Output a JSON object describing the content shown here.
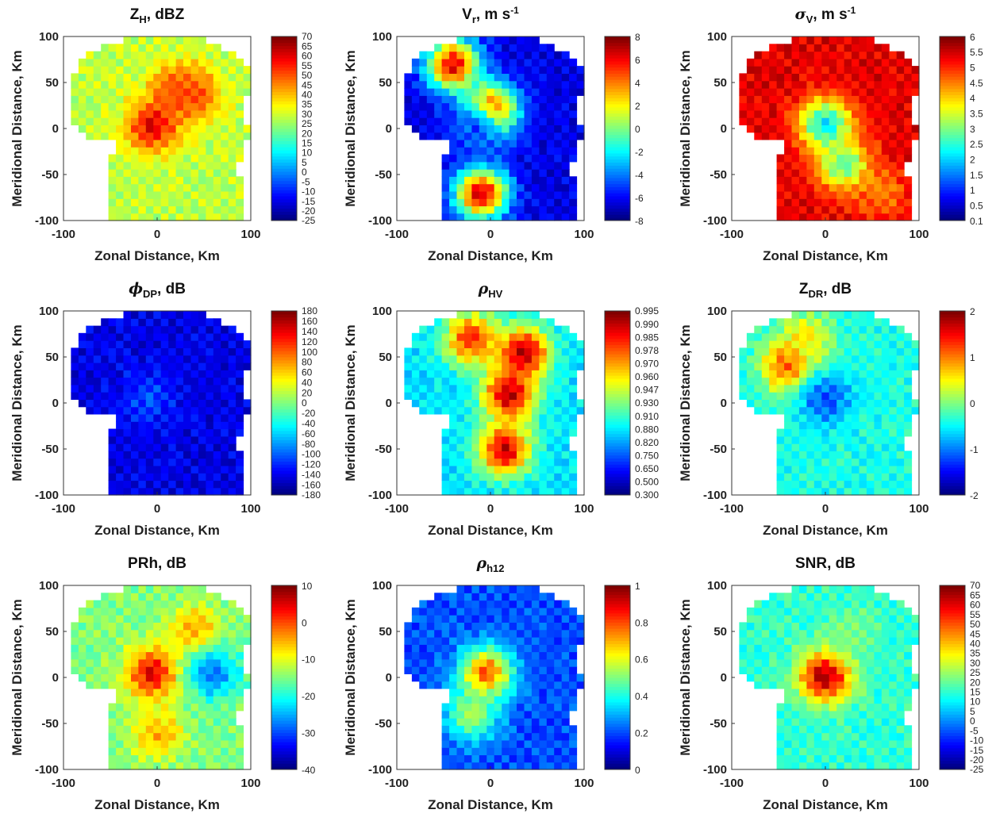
{
  "figure": {
    "xlabel": "Zonal Distance, Km",
    "ylabel": "Meridional Distance, Km",
    "xticks": [
      "-100",
      "0",
      "100"
    ],
    "yticks": [
      "100",
      "50",
      "0",
      "-50",
      "-100"
    ]
  },
  "chart_data": [
    {
      "type": "heatmap",
      "id": "zh",
      "title": {
        "main": "Z",
        "sub": "H",
        "suffix": ", dBZ",
        "italic": false
      },
      "xlim": [
        -100,
        100
      ],
      "ylim": [
        -100,
        100
      ],
      "colorbar": {
        "ticks": [
          "70",
          "65",
          "60",
          "55",
          "50",
          "45",
          "40",
          "35",
          "30",
          "25",
          "20",
          "15",
          "10",
          "5",
          "0",
          "-5",
          "-10",
          "-15",
          "-20",
          "-25"
        ],
        "min": -25,
        "max": 70
      },
      "field": {
        "base": 0.5,
        "echo_color": 0.56,
        "hotspots": [
          {
            "x": 20,
            "y": 45,
            "v": 0.78
          },
          {
            "x": 40,
            "y": 35,
            "v": 0.8
          },
          {
            "x": -5,
            "y": 3,
            "v": 0.9
          }
        ]
      }
    },
    {
      "type": "heatmap",
      "id": "vr",
      "title": {
        "main": "V",
        "sub": "r",
        "suffix": ", m s",
        "sup": "-1",
        "italic": false
      },
      "xlim": [
        -100,
        100
      ],
      "ylim": [
        -100,
        100
      ],
      "colorbar": {
        "ticks": [
          "8",
          "6",
          "4",
          "2",
          "0",
          "-2",
          "-4",
          "-6",
          "-8"
        ],
        "min": -8,
        "max": 8
      },
      "field": {
        "base": 0.08,
        "echo_color": 0.1,
        "hotspots": [
          {
            "x": -40,
            "y": 70,
            "v": 0.9
          },
          {
            "x": 0,
            "y": 20,
            "v": 0.95
          },
          {
            "x": -10,
            "y": -70,
            "v": 0.92
          },
          {
            "x": -15,
            "y": 0,
            "v": 0.2
          }
        ]
      }
    },
    {
      "type": "heatmap",
      "id": "sigv",
      "title": {
        "main": "σ",
        "sub": "V",
        "suffix": ", m s",
        "sup": "-1",
        "italic": true
      },
      "xlim": [
        -100,
        100
      ],
      "ylim": [
        -100,
        100
      ],
      "colorbar": {
        "ticks": [
          "6",
          "5.5",
          "5",
          "4.5",
          "4",
          "3.5",
          "3",
          "2.5",
          "2",
          "1.5",
          "1",
          "0.5",
          "0.1"
        ],
        "min": 0.1,
        "max": 6
      },
      "field": {
        "base": 0.95,
        "echo_color": 0.9,
        "hotspots": [
          {
            "x": 0,
            "y": 5,
            "v": 0.35
          },
          {
            "x": 20,
            "y": -40,
            "v": 0.45
          },
          {
            "x": 60,
            "y": -70,
            "v": 0.75
          }
        ]
      }
    },
    {
      "type": "heatmap",
      "id": "phidp",
      "title": {
        "main": "ϕ",
        "sub": "DP",
        "suffix": ", dB",
        "italic": true
      },
      "xlim": [
        -100,
        100
      ],
      "ylim": [
        -100,
        100
      ],
      "colorbar": {
        "ticks": [
          "180",
          "160",
          "140",
          "120",
          "100",
          "80",
          "60",
          "40",
          "20",
          "0",
          "-20",
          "-40",
          "-60",
          "-80",
          "-100",
          "-120",
          "-140",
          "-160",
          "-180"
        ],
        "min": -180,
        "max": 180
      },
      "field": {
        "base": 0.1,
        "echo_color": 0.1,
        "hotspots": [
          {
            "x": -10,
            "y": 5,
            "v": 0.2
          }
        ]
      }
    },
    {
      "type": "heatmap",
      "id": "rhohv",
      "title": {
        "main": "ρ",
        "sub": "HV",
        "suffix": "",
        "italic": true
      },
      "xlim": [
        -100,
        100
      ],
      "ylim": [
        -100,
        100
      ],
      "colorbar": {
        "ticks": [
          "0.995",
          "0.990",
          "0.985",
          "0.978",
          "0.970",
          "0.960",
          "0.947",
          "0.930",
          "0.910",
          "0.880",
          "0.820",
          "0.750",
          "0.650",
          "0.500",
          "0.300"
        ],
        "min": 0.3,
        "max": 0.995
      },
      "field": {
        "base": 0.3,
        "echo_color": 0.35,
        "hotspots": [
          {
            "x": 35,
            "y": 55,
            "v": 0.95
          },
          {
            "x": 20,
            "y": 10,
            "v": 0.95
          },
          {
            "x": 15,
            "y": -50,
            "v": 0.92
          },
          {
            "x": -20,
            "y": 70,
            "v": 0.85
          }
        ]
      }
    },
    {
      "type": "heatmap",
      "id": "zdr",
      "title": {
        "main": "Z",
        "sub": "DR",
        "suffix": ", dB",
        "italic": false
      },
      "xlim": [
        -100,
        100
      ],
      "ylim": [
        -100,
        100
      ],
      "colorbar": {
        "ticks": [
          "2",
          "1",
          "0",
          "-1",
          "-2"
        ],
        "min": -2,
        "max": 2
      },
      "field": {
        "base": 0.35,
        "echo_color": 0.4,
        "hotspots": [
          {
            "x": -40,
            "y": 40,
            "v": 0.82
          },
          {
            "x": -20,
            "y": 70,
            "v": 0.65
          },
          {
            "x": 0,
            "y": 5,
            "v": 0.2
          }
        ]
      }
    },
    {
      "type": "heatmap",
      "id": "prh",
      "title": {
        "main": "PRh",
        "sub": "",
        "suffix": ", dB",
        "italic": false
      },
      "xlim": [
        -100,
        100
      ],
      "ylim": [
        -100,
        100
      ],
      "colorbar": {
        "ticks": [
          "10",
          "0",
          "-10",
          "-20",
          "-30",
          "-40"
        ],
        "min": -40,
        "max": 10
      },
      "field": {
        "base": 0.55,
        "echo_color": 0.5,
        "hotspots": [
          {
            "x": -5,
            "y": 5,
            "v": 0.9
          },
          {
            "x": 40,
            "y": 50,
            "v": 0.72
          },
          {
            "x": 60,
            "y": 5,
            "v": 0.25
          },
          {
            "x": 0,
            "y": -60,
            "v": 0.7
          }
        ]
      }
    },
    {
      "type": "heatmap",
      "id": "rhoh12",
      "title": {
        "main": "ρ",
        "sub": "h12",
        "suffix": "",
        "italic": true
      },
      "xlim": [
        -100,
        100
      ],
      "ylim": [
        -100,
        100
      ],
      "colorbar": {
        "ticks": [
          "1",
          "0.8",
          "0.6",
          "0.4",
          "0.2",
          "0"
        ],
        "min": 0,
        "max": 1
      },
      "field": {
        "base": 0.18,
        "echo_color": 0.2,
        "hotspots": [
          {
            "x": -5,
            "y": 5,
            "v": 0.8
          },
          {
            "x": -20,
            "y": -40,
            "v": 0.55
          }
        ]
      }
    },
    {
      "type": "heatmap",
      "id": "snr",
      "title": {
        "main": "SNR",
        "sub": "",
        "suffix": ", dB",
        "italic": false
      },
      "xlim": [
        -100,
        100
      ],
      "ylim": [
        -100,
        100
      ],
      "colorbar": {
        "ticks": [
          "70",
          "65",
          "60",
          "55",
          "50",
          "45",
          "40",
          "35",
          "30",
          "25",
          "20",
          "15",
          "10",
          "5",
          "0",
          "-5",
          "-10",
          "-15",
          "-20",
          "-25"
        ],
        "min": -25,
        "max": 70
      },
      "field": {
        "base": 0.42,
        "echo_color": 0.42,
        "hotspots": [
          {
            "x": 0,
            "y": 2,
            "v": 0.97
          },
          {
            "x": 25,
            "y": 50,
            "v": 0.5
          }
        ]
      }
    }
  ]
}
